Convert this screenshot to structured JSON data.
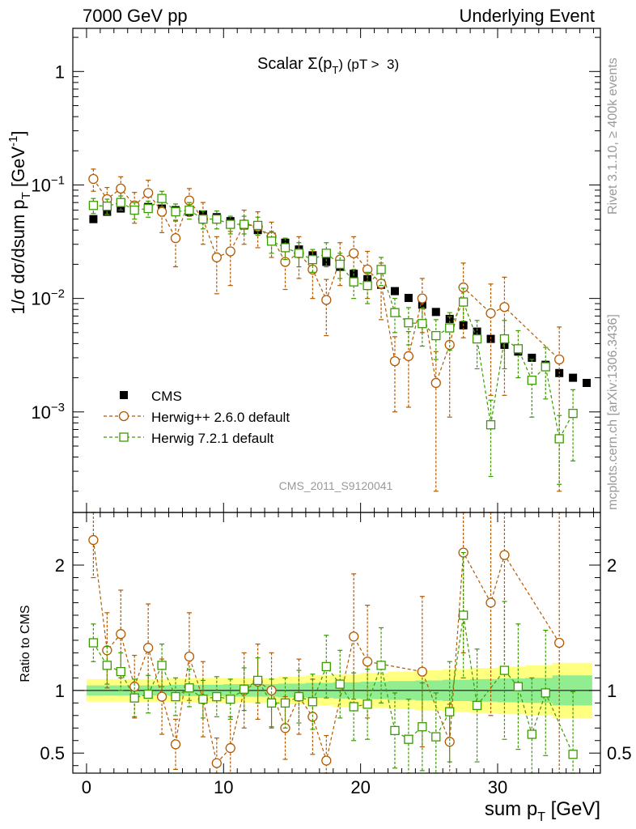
{
  "header": {
    "left": "7000 GeV pp",
    "right": "Underlying Event"
  },
  "side_text": {
    "rivet": "Rivet 3.1.10, ≥ 400k events",
    "mcplots": "mcplots.cern.ch [arXiv:1306.3436]"
  },
  "analysis_label": "CMS_2011_S9120041",
  "colors": {
    "cms": "#000000",
    "herwigpp": "#b35900",
    "herwig7": "#3a9a00",
    "band_inner": "#90ee90",
    "band_outer": "#ffff80"
  },
  "chart_data": [
    {
      "type": "scatter",
      "panel": "main",
      "title": "Scalar Σ(p_T) (pT > 3)",
      "xlabel": "sum p_T [GeV]",
      "ylabel": "1/σ dσ/dsum p_T [GeV^-1]",
      "yscale": "log",
      "xlim": [
        -1,
        37.5
      ],
      "ylim": [
        0.00013,
        2.4
      ],
      "y_ticks": [
        "10^-3",
        "10^-2",
        "10^-1",
        "1"
      ],
      "legend": {
        "placement": "bottom-left",
        "entries": [
          "CMS",
          "Herwig++ 2.6.0 default",
          "Herwig 7.2.1 default"
        ]
      },
      "series": [
        {
          "name": "CMS",
          "marker": "filled-square",
          "x": [
            0.5,
            1.5,
            2.5,
            3.5,
            4.5,
            5.5,
            6.5,
            7.5,
            8.5,
            9.5,
            10.5,
            11.5,
            12.5,
            13.5,
            14.5,
            15.5,
            16.5,
            17.5,
            18.5,
            19.5,
            20.5,
            21.5,
            22.5,
            23.5,
            24.5,
            25.5,
            26.5,
            27.5,
            28.5,
            29.5,
            30.5,
            31.5,
            32.5,
            33.5,
            34.5,
            35.5,
            36.5
          ],
          "y": [
            0.05,
            0.058,
            0.062,
            0.064,
            0.064,
            0.062,
            0.06,
            0.058,
            0.055,
            0.052,
            0.048,
            0.044,
            0.04,
            0.035,
            0.031,
            0.027,
            0.024,
            0.021,
            0.019,
            0.0165,
            0.0148,
            0.0132,
            0.0116,
            0.0101,
            0.0088,
            0.0076,
            0.0066,
            0.0058,
            0.0051,
            0.0044,
            0.0039,
            0.0034,
            0.003,
            0.0026,
            0.0022,
            0.002,
            0.0018
          ]
        },
        {
          "name": "Herwig++ 2.6.0 default",
          "marker": "open-circle",
          "x": [
            0.5,
            1.5,
            2.5,
            3.5,
            4.5,
            5.5,
            6.5,
            7.5,
            8.5,
            9.5,
            10.5,
            11.5,
            12.5,
            13.5,
            14.5,
            15.5,
            16.5,
            17.5,
            18.5,
            19.5,
            20.5,
            21.5,
            22.5,
            23.5,
            24.5,
            25.5,
            26.5,
            27.5,
            29.5,
            30.5,
            34.5
          ],
          "y": [
            0.113,
            0.075,
            0.093,
            0.066,
            0.085,
            0.058,
            0.034,
            0.073,
            0.05,
            0.023,
            0.026,
            0.045,
            0.043,
            0.035,
            0.021,
            0.025,
            0.018,
            0.0097,
            0.022,
            0.025,
            0.018,
            0.0135,
            0.0028,
            0.0031,
            0.01,
            0.0018,
            0.0039,
            0.0125,
            0.0074,
            0.0084,
            0.0029
          ],
          "y_err": [
            0.025,
            0.02,
            0.025,
            0.02,
            0.025,
            0.02,
            0.015,
            0.02,
            0.02,
            0.012,
            0.013,
            0.015,
            0.015,
            0.012,
            0.009,
            0.01,
            0.008,
            0.005,
            0.009,
            0.01,
            0.008,
            0.007,
            0.0018,
            0.002,
            0.005,
            0.0016,
            0.003,
            0.008,
            0.006,
            0.007,
            0.0027
          ]
        },
        {
          "name": "Herwig 7.2.1 default",
          "marker": "open-square",
          "x": [
            0.5,
            1.5,
            2.5,
            3.5,
            4.5,
            5.5,
            6.5,
            7.5,
            8.5,
            9.5,
            10.5,
            11.5,
            12.5,
            13.5,
            14.5,
            15.5,
            16.5,
            17.5,
            18.5,
            19.5,
            20.5,
            21.5,
            22.5,
            23.5,
            24.5,
            25.5,
            26.5,
            27.5,
            28.5,
            29.5,
            30.5,
            31.5,
            32.5,
            33.5,
            34.5,
            35.5
          ],
          "y": [
            0.066,
            0.065,
            0.07,
            0.06,
            0.062,
            0.076,
            0.058,
            0.06,
            0.05,
            0.05,
            0.045,
            0.045,
            0.044,
            0.032,
            0.028,
            0.025,
            0.022,
            0.025,
            0.02,
            0.014,
            0.013,
            0.018,
            0.0075,
            0.0061,
            0.006,
            0.0047,
            0.0055,
            0.0093,
            0.0044,
            0.00077,
            0.0044,
            0.0036,
            0.0019,
            0.0025,
            0.00058,
            0.00097
          ],
          "y_err": [
            0.01,
            0.01,
            0.01,
            0.01,
            0.01,
            0.012,
            0.01,
            0.01,
            0.009,
            0.009,
            0.008,
            0.008,
            0.008,
            0.007,
            0.006,
            0.006,
            0.005,
            0.006,
            0.005,
            0.004,
            0.004,
            0.005,
            0.0025,
            0.0022,
            0.0022,
            0.0018,
            0.002,
            0.003,
            0.002,
            0.0005,
            0.002,
            0.0016,
            0.001,
            0.0012,
            0.00035,
            0.0006
          ]
        }
      ]
    },
    {
      "type": "scatter",
      "panel": "ratio",
      "ylabel": "Ratio to CMS",
      "xlabel": "sum p_T [GeV]",
      "xlim": [
        -1,
        37.5
      ],
      "ylim": [
        0.34,
        2.42
      ],
      "y_ticks": [
        "0.5",
        "1",
        "2"
      ],
      "x_ticks": [
        "0",
        "10",
        "20",
        "30"
      ],
      "reference_line": 1,
      "bands": {
        "x": [
          0,
          2,
          4,
          6,
          8,
          10,
          12,
          14,
          16,
          18,
          20,
          22,
          24,
          26,
          28,
          30,
          32,
          34,
          36.9
        ],
        "inner_half_width": [
          0.04,
          0.04,
          0.04,
          0.045,
          0.045,
          0.05,
          0.05,
          0.055,
          0.06,
          0.065,
          0.07,
          0.075,
          0.08,
          0.085,
          0.09,
          0.095,
          0.1,
          0.12,
          0.14
        ],
        "outer_half_width": [
          0.09,
          0.09,
          0.09,
          0.095,
          0.1,
          0.1,
          0.1,
          0.11,
          0.12,
          0.13,
          0.14,
          0.15,
          0.16,
          0.17,
          0.18,
          0.19,
          0.2,
          0.22,
          0.25
        ]
      },
      "series": [
        {
          "name": "Herwig++ 2.6.0 default",
          "x": [
            0.5,
            1.5,
            2.5,
            3.5,
            4.5,
            5.5,
            6.5,
            7.5,
            8.5,
            9.5,
            10.5,
            11.5,
            12.5,
            13.5,
            14.5,
            15.5,
            16.5,
            17.5,
            19.5,
            20.5,
            24.5,
            26.5,
            27.5,
            29.5,
            30.5,
            34.5
          ],
          "y": [
            2.2,
            1.32,
            1.45,
            1.03,
            1.34,
            0.95,
            0.57,
            1.27,
            0.93,
            0.42,
            0.54,
            1.0,
            1.07,
            1.0,
            0.7,
            0.95,
            0.79,
            0.44,
            1.43,
            1.23,
            1.15,
            0.59,
            2.1,
            1.7,
            2.08,
            1.38
          ],
          "y_err": [
            0.3,
            0.3,
            0.35,
            0.25,
            0.35,
            0.3,
            0.2,
            0.35,
            0.3,
            0.2,
            0.25,
            0.3,
            0.3,
            0.3,
            0.25,
            0.3,
            0.3,
            0.2,
            0.5,
            0.45,
            0.6,
            0.3,
            0.8,
            0.9,
            0.9,
            1.2
          ]
        },
        {
          "name": "Herwig 7.2.1 default",
          "x": [
            0.5,
            1.5,
            2.5,
            3.5,
            4.5,
            5.5,
            6.5,
            7.5,
            8.5,
            9.5,
            10.5,
            11.5,
            12.5,
            13.5,
            14.5,
            15.5,
            16.5,
            17.5,
            18.5,
            19.5,
            20.5,
            21.5,
            22.5,
            23.5,
            24.5,
            25.5,
            26.5,
            27.5,
            28.5,
            30.5,
            31.5,
            32.5,
            33.5,
            35.5
          ],
          "y": [
            1.38,
            1.2,
            1.15,
            0.94,
            0.97,
            1.2,
            0.95,
            1.02,
            0.93,
            0.95,
            0.93,
            1.01,
            1.08,
            0.9,
            0.9,
            0.95,
            0.91,
            1.19,
            1.05,
            0.87,
            0.89,
            1.2,
            0.68,
            0.61,
            0.71,
            0.63,
            0.83,
            1.6,
            0.88,
            1.16,
            1.03,
            0.65,
            0.98,
            0.49
          ],
          "y_err": [
            0.15,
            0.15,
            0.15,
            0.15,
            0.15,
            0.17,
            0.15,
            0.15,
            0.15,
            0.16,
            0.16,
            0.17,
            0.18,
            0.19,
            0.2,
            0.21,
            0.22,
            0.25,
            0.27,
            0.27,
            0.28,
            0.3,
            0.3,
            0.32,
            0.35,
            0.35,
            0.4,
            0.5,
            0.45,
            0.55,
            0.5,
            0.45,
            0.5,
            0.5
          ]
        }
      ]
    }
  ]
}
